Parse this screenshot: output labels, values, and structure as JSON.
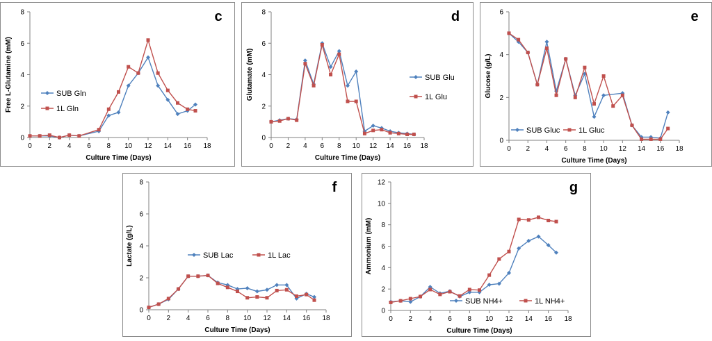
{
  "colors": {
    "sub": "#4f81bd",
    "one_l": "#c0504d"
  },
  "chart_data": [
    {
      "type": "line",
      "panel_letter": "c",
      "xlabel": "Culture Time (Days)",
      "ylabel": "Free L-Glutamine (mM)",
      "xlim": [
        0,
        18
      ],
      "ylim": [
        0,
        8
      ],
      "xticks": [
        0,
        2,
        4,
        6,
        8,
        10,
        12,
        14,
        16,
        18
      ],
      "yticks": [
        0,
        2,
        4,
        6,
        8
      ],
      "legend": "left-middle",
      "series": [
        {
          "name": "SUB Gln",
          "color": "#4f81bd",
          "marker": "diamond",
          "x": [
            0,
            1,
            2,
            3,
            4,
            5,
            7,
            8,
            9,
            10,
            11,
            12,
            13,
            14,
            15,
            16,
            16.8
          ],
          "y": [
            0.1,
            0.1,
            0.1,
            0.0,
            0.15,
            0.1,
            0.4,
            1.4,
            1.6,
            3.3,
            4.1,
            5.1,
            3.3,
            2.4,
            1.5,
            1.7,
            2.1
          ]
        },
        {
          "name": "1L Gln",
          "color": "#c0504d",
          "marker": "square",
          "x": [
            0,
            1,
            2,
            3,
            4,
            5,
            7,
            8,
            9,
            10,
            11,
            12,
            13,
            14,
            15,
            16,
            16.8
          ],
          "y": [
            0.1,
            0.1,
            0.15,
            0.0,
            0.15,
            0.1,
            0.5,
            1.8,
            2.9,
            4.5,
            4.1,
            6.2,
            4.1,
            3.0,
            2.2,
            1.8,
            1.7
          ]
        }
      ]
    },
    {
      "type": "line",
      "panel_letter": "d",
      "xlabel": "Culture Time (Days)",
      "ylabel": "Glutamate (mM)",
      "xlim": [
        0,
        18
      ],
      "ylim": [
        0,
        8
      ],
      "xticks": [
        0,
        2,
        4,
        6,
        8,
        10,
        12,
        14,
        16,
        18
      ],
      "yticks": [
        0,
        2,
        4,
        6,
        8
      ],
      "legend": "right-middle",
      "series": [
        {
          "name": "SUB Glu",
          "color": "#4f81bd",
          "marker": "diamond",
          "x": [
            0,
            1,
            2,
            3,
            4,
            5,
            6,
            7,
            8,
            9,
            10,
            11,
            12,
            13,
            14,
            15,
            16,
            16.8
          ],
          "y": [
            1.0,
            1.1,
            1.2,
            1.15,
            4.9,
            3.4,
            6.0,
            4.5,
            5.5,
            3.3,
            4.2,
            0.4,
            0.75,
            0.6,
            0.4,
            0.3,
            0.25,
            0.2
          ]
        },
        {
          "name": "1L Glu",
          "color": "#c0504d",
          "marker": "square",
          "x": [
            0,
            1,
            2,
            3,
            4,
            5,
            6,
            7,
            8,
            9,
            10,
            11,
            12,
            13,
            14,
            15,
            16,
            16.8
          ],
          "y": [
            1.0,
            1.05,
            1.2,
            1.1,
            4.7,
            3.3,
            5.9,
            4.0,
            5.3,
            2.3,
            2.3,
            0.25,
            0.45,
            0.5,
            0.3,
            0.25,
            0.2,
            0.2
          ]
        }
      ]
    },
    {
      "type": "line",
      "panel_letter": "e",
      "xlabel": "Culture Time (Days)",
      "ylabel": "Glucose (g/L)",
      "xlim": [
        0,
        18
      ],
      "ylim": [
        0,
        6
      ],
      "xticks": [
        0,
        2,
        4,
        6,
        8,
        10,
        12,
        14,
        16,
        18
      ],
      "yticks": [
        0,
        2,
        4,
        6
      ],
      "legend": "bottom",
      "series": [
        {
          "name": "SUB Gluc",
          "color": "#4f81bd",
          "marker": "diamond",
          "x": [
            0,
            1,
            2,
            3,
            4,
            5,
            6,
            7,
            8,
            9,
            10,
            12,
            13,
            14,
            15,
            16,
            16.8
          ],
          "y": [
            5.0,
            4.6,
            4.1,
            2.6,
            4.6,
            2.3,
            3.8,
            2.1,
            3.1,
            1.1,
            2.1,
            2.2,
            0.7,
            0.15,
            0.15,
            0.1,
            1.3
          ]
        },
        {
          "name": "1L Gluc",
          "color": "#c0504d",
          "marker": "square",
          "x": [
            0,
            1,
            2,
            3,
            4,
            5,
            6,
            7,
            8,
            9,
            10,
            11,
            12,
            13,
            14,
            15,
            16,
            16.8
          ],
          "y": [
            5.0,
            4.7,
            4.1,
            2.6,
            4.3,
            2.1,
            3.8,
            2.0,
            3.4,
            1.7,
            3.0,
            1.6,
            2.1,
            0.7,
            0.05,
            0.05,
            0.05,
            0.55
          ]
        }
      ]
    },
    {
      "type": "line",
      "panel_letter": "f",
      "xlabel": "Culture Time (Days)",
      "ylabel": "Lactate (g/L)",
      "xlim": [
        0,
        18
      ],
      "ylim": [
        0,
        8
      ],
      "xticks": [
        0,
        2,
        4,
        6,
        8,
        10,
        12,
        14,
        16,
        18
      ],
      "yticks": [
        0,
        2,
        4,
        6,
        8
      ],
      "legend": "middle",
      "series": [
        {
          "name": "SUB Lac",
          "color": "#4f81bd",
          "marker": "diamond",
          "x": [
            0,
            1,
            2,
            3,
            4,
            5,
            6,
            7,
            8,
            9,
            10,
            11,
            12,
            13,
            14,
            15,
            16,
            16.8
          ],
          "y": [
            0.15,
            0.35,
            0.65,
            1.3,
            2.1,
            2.1,
            2.15,
            1.7,
            1.55,
            1.3,
            1.35,
            1.15,
            1.25,
            1.55,
            1.55,
            0.7,
            1.0,
            0.8
          ]
        },
        {
          "name": "1L Lac",
          "color": "#c0504d",
          "marker": "square",
          "x": [
            0,
            1,
            2,
            3,
            4,
            5,
            6,
            7,
            8,
            9,
            10,
            11,
            12,
            13,
            14,
            15,
            16,
            16.8
          ],
          "y": [
            0.15,
            0.35,
            0.7,
            1.3,
            2.1,
            2.1,
            2.15,
            1.65,
            1.4,
            1.15,
            0.75,
            0.8,
            0.75,
            1.2,
            1.25,
            0.85,
            0.95,
            0.6
          ]
        }
      ]
    },
    {
      "type": "line",
      "panel_letter": "g",
      "xlabel": "Culture Time (Days)",
      "ylabel": "Ammonium (mM)",
      "xlim": [
        0,
        18
      ],
      "ylim": [
        0,
        12
      ],
      "xticks": [
        0,
        2,
        4,
        6,
        8,
        10,
        12,
        14,
        16,
        18
      ],
      "yticks": [
        0,
        2,
        4,
        6,
        8,
        10,
        12
      ],
      "legend": "bottom",
      "series": [
        {
          "name": "SUB NH4+",
          "color": "#4f81bd",
          "marker": "diamond",
          "x": [
            0,
            1,
            2,
            3,
            4,
            5,
            6,
            7,
            8,
            9,
            10,
            11,
            12,
            13,
            14,
            15,
            16,
            16.8
          ],
          "y": [
            0.8,
            0.9,
            0.8,
            1.3,
            2.2,
            1.6,
            1.8,
            1.3,
            1.7,
            1.7,
            2.4,
            2.5,
            3.5,
            5.8,
            6.5,
            6.9,
            6.1,
            5.4
          ]
        },
        {
          "name": "1L NH4+",
          "color": "#c0504d",
          "marker": "square",
          "x": [
            0,
            1,
            2,
            3,
            4,
            5,
            6,
            7,
            8,
            9,
            10,
            11,
            12,
            13,
            14,
            15,
            16,
            16.8
          ],
          "y": [
            0.75,
            0.9,
            1.1,
            1.3,
            1.95,
            1.5,
            1.75,
            1.35,
            1.95,
            1.9,
            3.3,
            4.8,
            5.5,
            8.5,
            8.45,
            8.7,
            8.4,
            8.3
          ]
        }
      ]
    }
  ]
}
